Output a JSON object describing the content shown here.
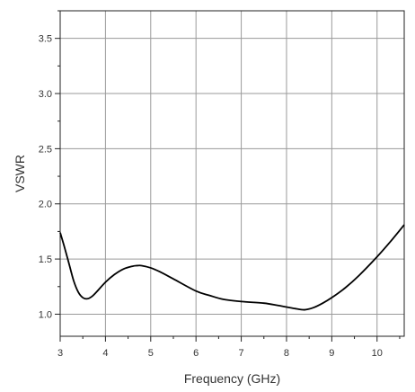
{
  "chart_data": {
    "type": "line",
    "title": "",
    "xlabel": "Frequency (GHz)",
    "ylabel": "VSWR",
    "xlim": [
      3,
      10.6
    ],
    "ylim": [
      0.8,
      3.75
    ],
    "x_ticks": [
      3,
      4,
      5,
      6,
      7,
      8,
      9,
      10
    ],
    "y_ticks": [
      1.0,
      1.5,
      2.0,
      2.5,
      3.0,
      3.5
    ],
    "x_tick_labels": [
      "3",
      "4",
      "5",
      "6",
      "7",
      "8",
      "9",
      "10"
    ],
    "y_tick_labels": [
      "1.0",
      "1.5",
      "2.0",
      "2.5",
      "3.0",
      "3.5"
    ],
    "grid": true,
    "series": [
      {
        "color": "#000000",
        "x": [
          3.0,
          3.1,
          3.2,
          3.3,
          3.4,
          3.5,
          3.6,
          3.7,
          3.8,
          4.0,
          4.2,
          4.4,
          4.6,
          4.7,
          4.8,
          5.0,
          5.2,
          5.5,
          6.0,
          6.3,
          6.6,
          7.0,
          7.5,
          7.8,
          8.0,
          8.2,
          8.4,
          8.6,
          8.8,
          9.0,
          9.3,
          9.6,
          10.0,
          10.3,
          10.6
        ],
        "y": [
          1.74,
          1.6,
          1.45,
          1.3,
          1.2,
          1.15,
          1.14,
          1.16,
          1.2,
          1.29,
          1.36,
          1.41,
          1.435,
          1.44,
          1.44,
          1.42,
          1.385,
          1.32,
          1.21,
          1.17,
          1.135,
          1.115,
          1.1,
          1.08,
          1.065,
          1.05,
          1.04,
          1.06,
          1.1,
          1.15,
          1.24,
          1.35,
          1.52,
          1.66,
          1.81
        ]
      }
    ]
  }
}
